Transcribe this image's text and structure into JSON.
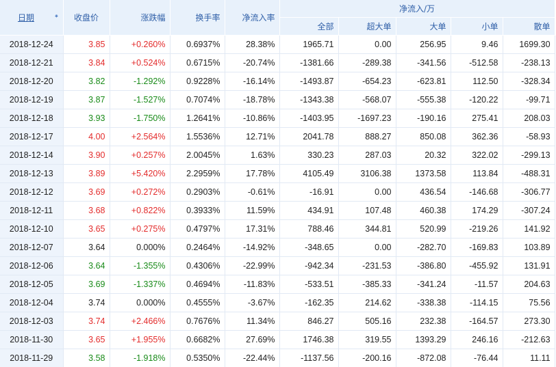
{
  "header": {
    "date": "日期",
    "close": "收盘价",
    "change": "涨跌幅",
    "turnover": "换手率",
    "net_rate": "净流入率",
    "net_group": "净流入/万",
    "total": "全部",
    "super_large": "超大单",
    "large": "大单",
    "small": "小单",
    "retail": "散单"
  },
  "colors": {
    "up": "#e32b2b",
    "down": "#188a18",
    "header_bg": "#e8f1fb",
    "header_text": "#3060a8"
  },
  "rows": [
    {
      "date": "2018-12-24",
      "close": "3.85",
      "change": "+0.260%",
      "turnover": "0.6937%",
      "net_rate": "28.38%",
      "total": "1965.71",
      "super_large": "0.00",
      "large": "256.95",
      "small": "9.46",
      "retail": "1699.30",
      "dir": "up"
    },
    {
      "date": "2018-12-21",
      "close": "3.84",
      "change": "+0.524%",
      "turnover": "0.6715%",
      "net_rate": "-20.74%",
      "total": "-1381.66",
      "super_large": "-289.38",
      "large": "-341.56",
      "small": "-512.58",
      "retail": "-238.13",
      "dir": "up"
    },
    {
      "date": "2018-12-20",
      "close": "3.82",
      "change": "-1.292%",
      "turnover": "0.9228%",
      "net_rate": "-16.14%",
      "total": "-1493.87",
      "super_large": "-654.23",
      "large": "-623.81",
      "small": "112.50",
      "retail": "-328.34",
      "dir": "down"
    },
    {
      "date": "2018-12-19",
      "close": "3.87",
      "change": "-1.527%",
      "turnover": "0.7074%",
      "net_rate": "-18.78%",
      "total": "-1343.38",
      "super_large": "-568.07",
      "large": "-555.38",
      "small": "-120.22",
      "retail": "-99.71",
      "dir": "down"
    },
    {
      "date": "2018-12-18",
      "close": "3.93",
      "change": "-1.750%",
      "turnover": "1.2641%",
      "net_rate": "-10.86%",
      "total": "-1403.95",
      "super_large": "-1697.23",
      "large": "-190.16",
      "small": "275.41",
      "retail": "208.03",
      "dir": "down"
    },
    {
      "date": "2018-12-17",
      "close": "4.00",
      "change": "+2.564%",
      "turnover": "1.5536%",
      "net_rate": "12.71%",
      "total": "2041.78",
      "super_large": "888.27",
      "large": "850.08",
      "small": "362.36",
      "retail": "-58.93",
      "dir": "up"
    },
    {
      "date": "2018-12-14",
      "close": "3.90",
      "change": "+0.257%",
      "turnover": "2.0045%",
      "net_rate": "1.63%",
      "total": "330.23",
      "super_large": "287.03",
      "large": "20.32",
      "small": "322.02",
      "retail": "-299.13",
      "dir": "up"
    },
    {
      "date": "2018-12-13",
      "close": "3.89",
      "change": "+5.420%",
      "turnover": "2.2959%",
      "net_rate": "17.78%",
      "total": "4105.49",
      "super_large": "3106.38",
      "large": "1373.58",
      "small": "113.84",
      "retail": "-488.31",
      "dir": "up"
    },
    {
      "date": "2018-12-12",
      "close": "3.69",
      "change": "+0.272%",
      "turnover": "0.2903%",
      "net_rate": "-0.61%",
      "total": "-16.91",
      "super_large": "0.00",
      "large": "436.54",
      "small": "-146.68",
      "retail": "-306.77",
      "dir": "up"
    },
    {
      "date": "2018-12-11",
      "close": "3.68",
      "change": "+0.822%",
      "turnover": "0.3933%",
      "net_rate": "11.59%",
      "total": "434.91",
      "super_large": "107.48",
      "large": "460.38",
      "small": "174.29",
      "retail": "-307.24",
      "dir": "up"
    },
    {
      "date": "2018-12-10",
      "close": "3.65",
      "change": "+0.275%",
      "turnover": "0.4797%",
      "net_rate": "17.31%",
      "total": "788.46",
      "super_large": "344.81",
      "large": "520.99",
      "small": "-219.26",
      "retail": "141.92",
      "dir": "up"
    },
    {
      "date": "2018-12-07",
      "close": "3.64",
      "change": "0.000%",
      "turnover": "0.2464%",
      "net_rate": "-14.92%",
      "total": "-348.65",
      "super_large": "0.00",
      "large": "-282.70",
      "small": "-169.83",
      "retail": "103.89",
      "dir": "flat"
    },
    {
      "date": "2018-12-06",
      "close": "3.64",
      "change": "-1.355%",
      "turnover": "0.4306%",
      "net_rate": "-22.99%",
      "total": "-942.34",
      "super_large": "-231.53",
      "large": "-386.80",
      "small": "-455.92",
      "retail": "131.91",
      "dir": "down"
    },
    {
      "date": "2018-12-05",
      "close": "3.69",
      "change": "-1.337%",
      "turnover": "0.4694%",
      "net_rate": "-11.83%",
      "total": "-533.51",
      "super_large": "-385.33",
      "large": "-341.24",
      "small": "-11.57",
      "retail": "204.63",
      "dir": "down"
    },
    {
      "date": "2018-12-04",
      "close": "3.74",
      "change": "0.000%",
      "turnover": "0.4555%",
      "net_rate": "-3.67%",
      "total": "-162.35",
      "super_large": "214.62",
      "large": "-338.38",
      "small": "-114.15",
      "retail": "75.56",
      "dir": "flat"
    },
    {
      "date": "2018-12-03",
      "close": "3.74",
      "change": "+2.466%",
      "turnover": "0.7676%",
      "net_rate": "11.34%",
      "total": "846.27",
      "super_large": "505.16",
      "large": "232.38",
      "small": "-164.57",
      "retail": "273.30",
      "dir": "up"
    },
    {
      "date": "2018-11-30",
      "close": "3.65",
      "change": "+1.955%",
      "turnover": "0.6682%",
      "net_rate": "27.69%",
      "total": "1746.38",
      "super_large": "319.55",
      "large": "1393.29",
      "small": "246.16",
      "retail": "-212.63",
      "dir": "up"
    },
    {
      "date": "2018-11-29",
      "close": "3.58",
      "change": "-1.918%",
      "turnover": "0.5350%",
      "net_rate": "-22.44%",
      "total": "-1137.56",
      "super_large": "-200.16",
      "large": "-872.08",
      "small": "-76.44",
      "retail": "11.11",
      "dir": "down"
    }
  ]
}
